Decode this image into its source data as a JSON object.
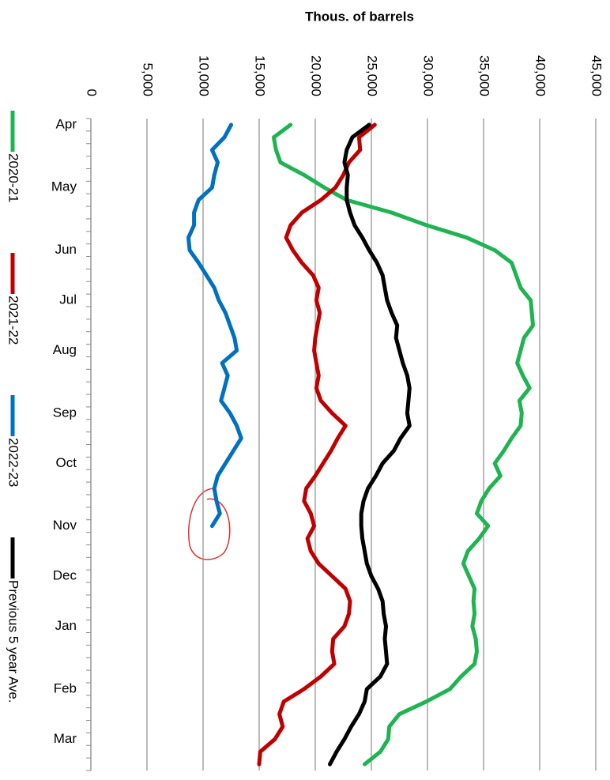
{
  "chart_data": {
    "type": "line",
    "x_title": "Thous. of barrels",
    "categories": [
      "Apr",
      null,
      null,
      null,
      null,
      "May",
      null,
      null,
      null,
      null,
      "Jun",
      null,
      null,
      null,
      "Jul",
      null,
      null,
      null,
      "Aug",
      null,
      null,
      null,
      null,
      "Sep",
      null,
      null,
      null,
      "Oct",
      null,
      null,
      null,
      null,
      "Nov",
      null,
      null,
      null,
      "Dec",
      null,
      null,
      null,
      "Jan",
      null,
      null,
      null,
      null,
      "Feb",
      null,
      null,
      null,
      "Mar",
      null,
      null
    ],
    "series": [
      {
        "name": "2020-21",
        "color": "#1fb451",
        "values": [
          17800,
          16300,
          16500,
          16900,
          19000,
          20800,
          22800,
          26800,
          29900,
          33500,
          36000,
          37500,
          37900,
          38300,
          39200,
          39300,
          39400,
          38600,
          38300,
          38000,
          38500,
          39100,
          38200,
          38400,
          38300,
          37500,
          36800,
          36000,
          36500,
          35500,
          34800,
          34400,
          35400,
          34600,
          33600,
          33200,
          33700,
          34200,
          34100,
          34200,
          34000,
          34300,
          34400,
          34200,
          33000,
          32000,
          29900,
          27500,
          26600,
          26500,
          25800,
          24400
        ]
      },
      {
        "name": "2021-22",
        "color": "#c00000",
        "values": [
          25300,
          23900,
          24000,
          23000,
          22500,
          21800,
          20500,
          18800,
          17800,
          17400,
          18000,
          18800,
          19800,
          20300,
          20100,
          20400,
          20200,
          20000,
          19900,
          20100,
          20300,
          20100,
          20500,
          21500,
          22700,
          22000,
          21400,
          20700,
          20000,
          19200,
          19000,
          19600,
          19900,
          19300,
          19600,
          20300,
          21500,
          22700,
          23100,
          23000,
          22600,
          21600,
          21500,
          21700,
          20500,
          19000,
          17200,
          16800,
          17100,
          16400,
          15100,
          15000
        ]
      },
      {
        "name": "2022-23",
        "color": "#0070c0",
        "values": [
          12500,
          11900,
          10800,
          11300,
          11000,
          10800,
          9600,
          9200,
          9200,
          8700,
          8800,
          9600,
          10300,
          11000,
          11400,
          12000,
          12400,
          12800,
          13000,
          11700,
          12200,
          11900,
          11600,
          12400,
          13000,
          13400,
          12700,
          12000,
          11300,
          11000,
          11200,
          11500,
          10800,
          null,
          null,
          null,
          null,
          null,
          null,
          null,
          null,
          null,
          null,
          null,
          null,
          null,
          null,
          null,
          null,
          null,
          null,
          null
        ]
      },
      {
        "name": "Previous 5 year Ave.",
        "color": "#000000",
        "values": [
          24800,
          23300,
          22800,
          22600,
          22900,
          22800,
          22800,
          23100,
          23500,
          24200,
          24800,
          25500,
          26000,
          26200,
          26400,
          26800,
          27300,
          27200,
          27500,
          27800,
          28200,
          28400,
          28300,
          28200,
          28400,
          27600,
          27000,
          26000,
          25400,
          24700,
          24300,
          24100,
          24100,
          24200,
          24400,
          24600,
          25000,
          25600,
          26000,
          26100,
          26300,
          26200,
          26300,
          26400,
          25800,
          24600,
          24400,
          23900,
          23200,
          22600,
          21900,
          21300
        ]
      }
    ],
    "xlim": [
      0,
      45000
    ],
    "xticks": [
      0,
      {
        "value": 5000,
        "label": "5,000"
      },
      {
        "value": 10000,
        "label": "10,000"
      },
      {
        "value": 15000,
        "label": "15,000"
      },
      {
        "value": 20000,
        "label": "20,000"
      },
      {
        "value": 25000,
        "label": "25,000"
      },
      {
        "value": 30000,
        "label": "30,000"
      },
      {
        "value": 35000,
        "label": "35,000"
      },
      {
        "value": 40000,
        "label": "40,000"
      },
      {
        "value": 45000,
        "label": "45,000"
      }
    ],
    "grid": true,
    "legend": "left"
  }
}
